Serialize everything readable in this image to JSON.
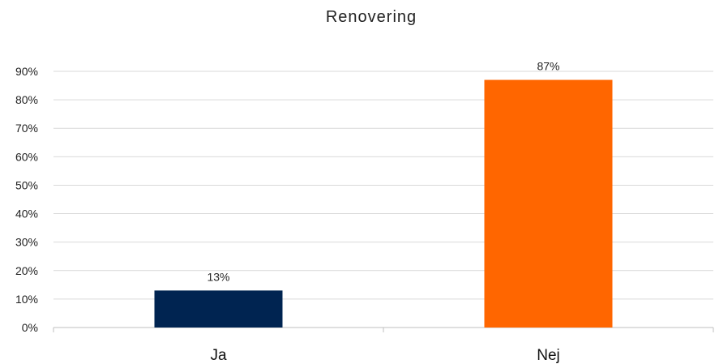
{
  "chart_data": {
    "type": "bar",
    "title": "Renovering",
    "categories": [
      "Ja",
      "Nej"
    ],
    "values": [
      0.13,
      0.87
    ],
    "data_labels": [
      "13%",
      "87%"
    ],
    "bar_colors": [
      "#002451",
      "#ff6600"
    ],
    "ylim": [
      0,
      0.9
    ],
    "yticks": [
      0,
      0.1,
      0.2,
      0.3,
      0.4,
      0.5,
      0.6,
      0.7,
      0.8,
      0.9
    ],
    "ytick_labels": [
      "0%",
      "10%",
      "20%",
      "30%",
      "40%",
      "50%",
      "60%",
      "70%",
      "80%",
      "90%"
    ],
    "grid": true,
    "legend": "none"
  }
}
